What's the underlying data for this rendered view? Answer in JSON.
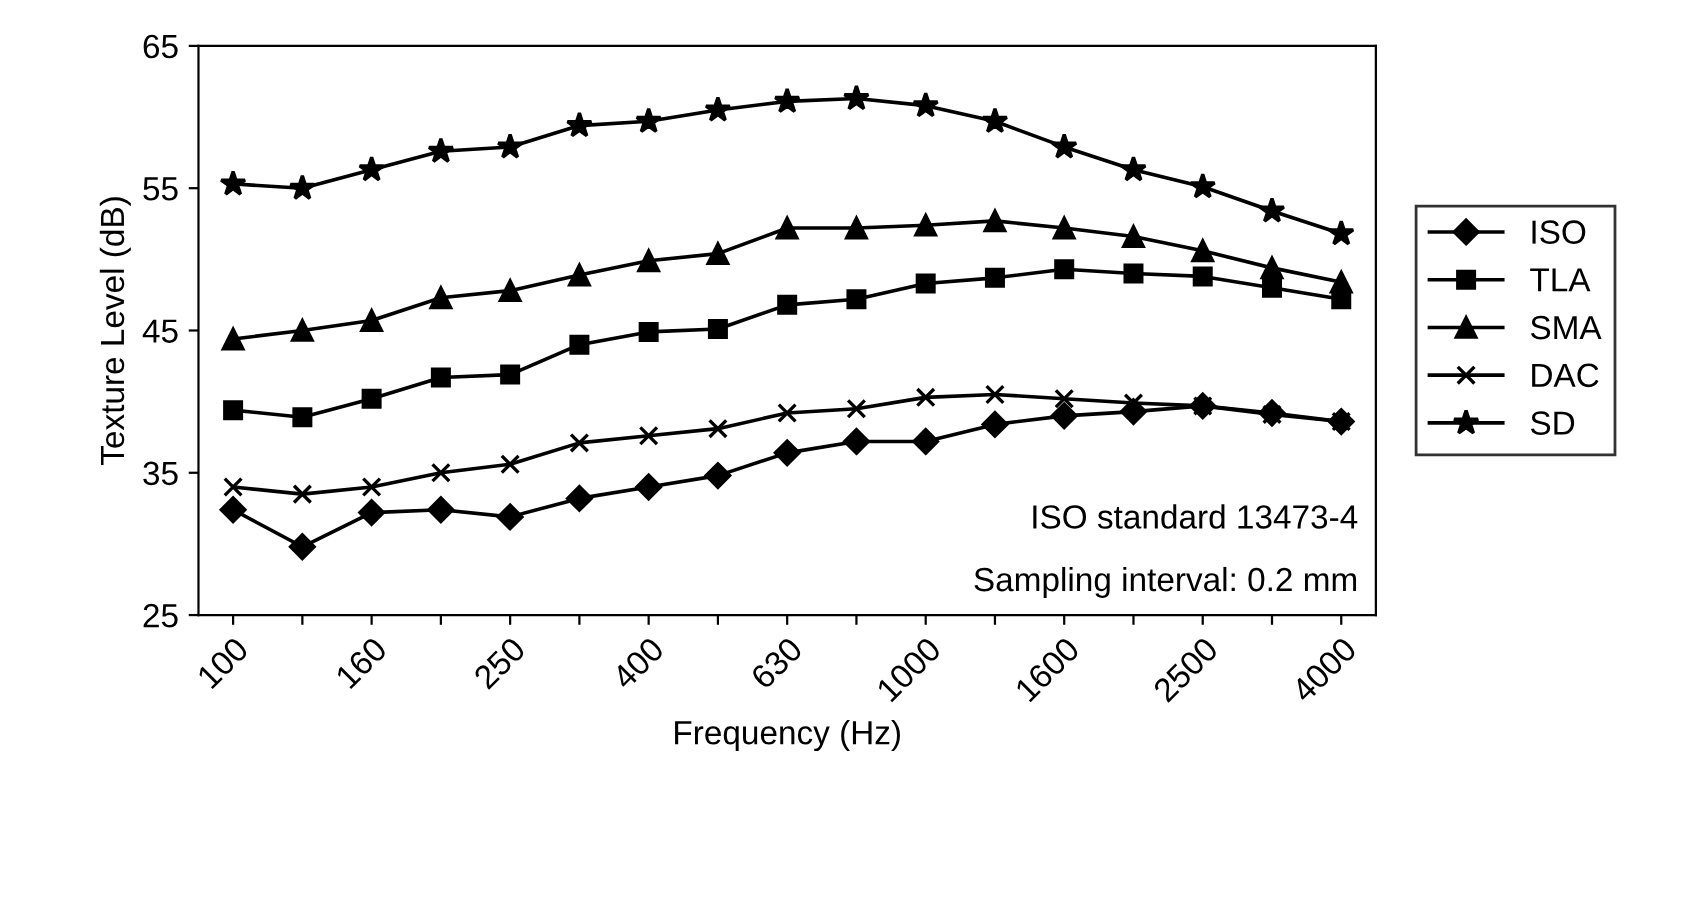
{
  "chart_data": {
    "type": "line",
    "xlabel": "Frequency (Hz)",
    "ylabel": "Texture Level (dB)",
    "categories": [
      "100",
      null,
      "160",
      null,
      "250",
      null,
      "400",
      null,
      "630",
      null,
      "1000",
      null,
      "1600",
      null,
      "2500",
      null,
      "4000"
    ],
    "series": [
      {
        "name": "ISO",
        "color": "#000000",
        "marker": "diamond",
        "values": [
          32.4,
          29.8,
          32.2,
          32.4,
          31.9,
          33.2,
          34.0,
          34.8,
          36.4,
          37.2,
          37.2,
          38.4,
          39.0,
          39.3,
          39.7,
          39.2,
          38.6
        ]
      },
      {
        "name": "TLA",
        "color": "#000000",
        "marker": "square",
        "values": [
          39.4,
          38.9,
          40.2,
          41.7,
          41.9,
          44.0,
          44.9,
          45.1,
          46.8,
          47.2,
          48.3,
          48.7,
          49.3,
          49.0,
          48.8,
          48.0,
          47.2
        ]
      },
      {
        "name": "SMA",
        "color": "#000000",
        "marker": "triangle",
        "values": [
          44.4,
          45.0,
          45.7,
          47.3,
          47.8,
          48.9,
          49.9,
          50.4,
          52.2,
          52.2,
          52.4,
          52.7,
          52.2,
          51.6,
          50.6,
          49.4,
          48.4
        ]
      },
      {
        "name": "DAC",
        "color": "#000000",
        "marker": "cross",
        "values": [
          34.0,
          33.5,
          34.0,
          35.0,
          35.6,
          37.1,
          37.6,
          38.1,
          39.2,
          39.5,
          40.3,
          40.5,
          40.2,
          39.9,
          39.7,
          39.1,
          38.6
        ]
      },
      {
        "name": "SD",
        "color": "#000000",
        "marker": "star",
        "values": [
          55.3,
          55.0,
          56.3,
          57.6,
          57.9,
          59.4,
          59.7,
          60.5,
          61.1,
          61.3,
          60.8,
          59.7,
          57.9,
          56.3,
          55.1,
          53.4,
          51.8
        ]
      }
    ],
    "ylim": [
      25,
      65
    ],
    "yticks": [
      25,
      35,
      45,
      55,
      65
    ],
    "grid": false,
    "legend": "right",
    "line_style": "solid",
    "annotations": [
      "ISO standard 13473-4",
      "Sampling interval: 0.2 mm"
    ]
  }
}
